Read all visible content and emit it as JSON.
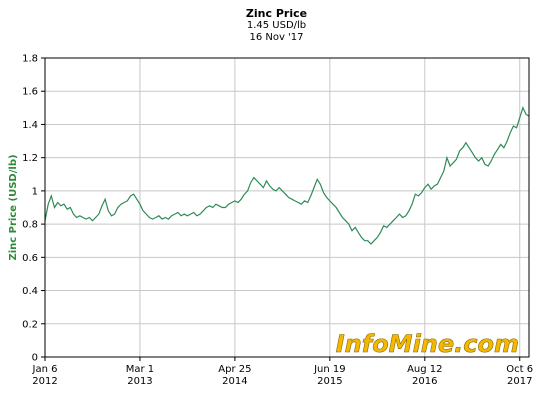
{
  "chart_data": {
    "type": "line",
    "title": "Zinc Price",
    "subtitle_line1": "1.45 USD/lb",
    "subtitle_line2": "16 Nov '17",
    "ylabel": "Zinc Price (USD/lb)",
    "ylim": [
      0,
      1.8
    ],
    "yticks": [
      0,
      0.2,
      0.4,
      0.6,
      0.8,
      1,
      1.2,
      1.4,
      1.6,
      1.8
    ],
    "ytick_labels": [
      "0",
      "0.2",
      "0.4",
      "0.6",
      "0.8",
      "1",
      "1.2",
      "1.4",
      "1.6",
      "1.8"
    ],
    "xlim": [
      "2012-01-06",
      "2017-11-16"
    ],
    "xticks": [
      {
        "date": "2012-01-06",
        "line1": "Jan 6",
        "line2": "2012"
      },
      {
        "date": "2013-03-01",
        "line1": "Mar 1",
        "line2": "2013"
      },
      {
        "date": "2014-04-25",
        "line1": "Apr 25",
        "line2": "2014"
      },
      {
        "date": "2015-06-19",
        "line1": "Jun 19",
        "line2": "2015"
      },
      {
        "date": "2016-08-12",
        "line1": "Aug 12",
        "line2": "2016"
      },
      {
        "date": "2017-10-06",
        "line1": "Oct 6",
        "line2": "2017"
      }
    ],
    "grid": true,
    "line_color": "#2e8b57",
    "series": [
      {
        "x": [
          "2012-01-06",
          "2012-01-20",
          "2012-02-03",
          "2012-02-17",
          "2012-03-02",
          "2012-03-16",
          "2012-03-30",
          "2012-04-13",
          "2012-04-27",
          "2012-05-11",
          "2012-05-25",
          "2012-06-08",
          "2012-06-22",
          "2012-07-06",
          "2012-07-20",
          "2012-08-03",
          "2012-08-17",
          "2012-08-31",
          "2012-09-14",
          "2012-09-28",
          "2012-10-12",
          "2012-10-26",
          "2012-11-09",
          "2012-11-23",
          "2012-12-07",
          "2012-12-21",
          "2013-01-04",
          "2013-01-18",
          "2013-02-01",
          "2013-02-15",
          "2013-03-01",
          "2013-03-15",
          "2013-03-29",
          "2013-04-12",
          "2013-04-26",
          "2013-05-10",
          "2013-05-24",
          "2013-06-07",
          "2013-06-21",
          "2013-07-05",
          "2013-07-19",
          "2013-08-02",
          "2013-08-16",
          "2013-08-30",
          "2013-09-13",
          "2013-09-27",
          "2013-10-11",
          "2013-10-25",
          "2013-11-08",
          "2013-11-22",
          "2013-12-06",
          "2013-12-20",
          "2014-01-03",
          "2014-01-17",
          "2014-01-31",
          "2014-02-14",
          "2014-02-28",
          "2014-03-14",
          "2014-03-28",
          "2014-04-11",
          "2014-04-25",
          "2014-05-09",
          "2014-05-23",
          "2014-06-06",
          "2014-06-20",
          "2014-07-04",
          "2014-07-18",
          "2014-08-01",
          "2014-08-15",
          "2014-08-29",
          "2014-09-12",
          "2014-09-26",
          "2014-10-10",
          "2014-10-24",
          "2014-11-07",
          "2014-11-21",
          "2014-12-05",
          "2014-12-19",
          "2015-01-02",
          "2015-01-16",
          "2015-01-30",
          "2015-02-13",
          "2015-02-27",
          "2015-03-13",
          "2015-03-27",
          "2015-04-10",
          "2015-04-24",
          "2015-05-08",
          "2015-05-22",
          "2015-06-05",
          "2015-06-19",
          "2015-07-03",
          "2015-07-17",
          "2015-07-31",
          "2015-08-14",
          "2015-08-28",
          "2015-09-11",
          "2015-09-25",
          "2015-10-09",
          "2015-10-23",
          "2015-11-06",
          "2015-11-20",
          "2015-12-04",
          "2015-12-18",
          "2016-01-01",
          "2016-01-15",
          "2016-01-29",
          "2016-02-12",
          "2016-02-26",
          "2016-03-11",
          "2016-03-25",
          "2016-04-08",
          "2016-04-22",
          "2016-05-06",
          "2016-05-20",
          "2016-06-03",
          "2016-06-17",
          "2016-07-01",
          "2016-07-15",
          "2016-07-29",
          "2016-08-12",
          "2016-08-26",
          "2016-09-09",
          "2016-09-23",
          "2016-10-07",
          "2016-10-21",
          "2016-11-04",
          "2016-11-18",
          "2016-12-02",
          "2016-12-16",
          "2016-12-30",
          "2017-01-13",
          "2017-01-27",
          "2017-02-10",
          "2017-02-24",
          "2017-03-10",
          "2017-03-24",
          "2017-04-07",
          "2017-04-21",
          "2017-05-05",
          "2017-05-19",
          "2017-06-02",
          "2017-06-16",
          "2017-06-30",
          "2017-07-14",
          "2017-07-28",
          "2017-08-11",
          "2017-08-25",
          "2017-09-08",
          "2017-09-22",
          "2017-10-06",
          "2017-10-20",
          "2017-11-03",
          "2017-11-16"
        ],
        "y": [
          0.82,
          0.92,
          0.97,
          0.9,
          0.93,
          0.91,
          0.92,
          0.89,
          0.9,
          0.86,
          0.84,
          0.85,
          0.84,
          0.83,
          0.84,
          0.82,
          0.84,
          0.86,
          0.91,
          0.95,
          0.88,
          0.85,
          0.86,
          0.9,
          0.92,
          0.93,
          0.94,
          0.97,
          0.98,
          0.95,
          0.92,
          0.88,
          0.86,
          0.84,
          0.83,
          0.84,
          0.85,
          0.83,
          0.84,
          0.83,
          0.85,
          0.86,
          0.87,
          0.85,
          0.86,
          0.85,
          0.86,
          0.87,
          0.85,
          0.86,
          0.88,
          0.9,
          0.91,
          0.9,
          0.92,
          0.91,
          0.9,
          0.9,
          0.92,
          0.93,
          0.94,
          0.93,
          0.95,
          0.98,
          1.0,
          1.05,
          1.08,
          1.06,
          1.04,
          1.02,
          1.06,
          1.03,
          1.01,
          1.0,
          1.02,
          1.0,
          0.98,
          0.96,
          0.95,
          0.94,
          0.93,
          0.92,
          0.94,
          0.93,
          0.97,
          1.02,
          1.07,
          1.04,
          0.99,
          0.96,
          0.94,
          0.92,
          0.9,
          0.87,
          0.84,
          0.82,
          0.8,
          0.76,
          0.78,
          0.75,
          0.72,
          0.7,
          0.7,
          0.68,
          0.7,
          0.72,
          0.75,
          0.79,
          0.78,
          0.8,
          0.82,
          0.84,
          0.86,
          0.84,
          0.85,
          0.88,
          0.92,
          0.98,
          0.97,
          0.99,
          1.02,
          1.04,
          1.01,
          1.03,
          1.04,
          1.08,
          1.12,
          1.2,
          1.15,
          1.17,
          1.19,
          1.24,
          1.26,
          1.29,
          1.26,
          1.23,
          1.2,
          1.18,
          1.2,
          1.16,
          1.15,
          1.18,
          1.22,
          1.25,
          1.28,
          1.26,
          1.3,
          1.35,
          1.39,
          1.38,
          1.44,
          1.5,
          1.46,
          1.45
        ]
      }
    ]
  },
  "watermark": "InfoMine.com"
}
